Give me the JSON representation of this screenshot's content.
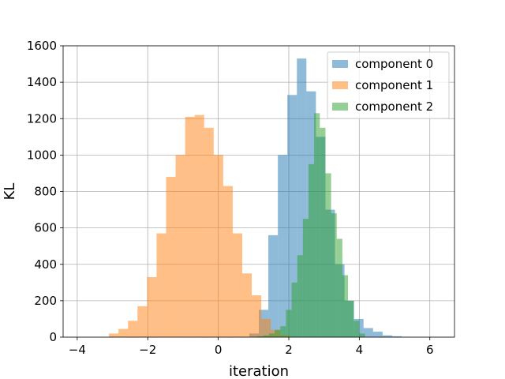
{
  "chart_data": {
    "type": "bar",
    "title": "",
    "xlabel": "iteration",
    "ylabel": "KL",
    "xlim": [
      -4.4,
      6.7
    ],
    "ylim": [
      0,
      1600
    ],
    "xticks": [
      -4,
      -2,
      0,
      2,
      4,
      6
    ],
    "yticks": [
      0,
      200,
      400,
      600,
      800,
      1000,
      1200,
      1400,
      1600
    ],
    "grid": true,
    "legend_position": "top-right",
    "alpha": 0.5,
    "series": [
      {
        "name": "component 0",
        "color": "#1f77b4",
        "edges": [
          0.88,
          1.15,
          1.42,
          1.69,
          1.96,
          2.23,
          2.5,
          2.77,
          3.04,
          3.31,
          3.58,
          3.85,
          4.12,
          4.39,
          4.66,
          4.93,
          5.2,
          5.47
        ],
        "counts": [
          20,
          150,
          560,
          1000,
          1330,
          1530,
          1350,
          1100,
          700,
          400,
          200,
          100,
          50,
          30,
          10,
          5,
          2
        ]
      },
      {
        "name": "component 1",
        "color": "#ff7f0e",
        "edges": [
          -3.1,
          -2.83,
          -2.56,
          -2.29,
          -2.02,
          -1.75,
          -1.48,
          -1.21,
          -0.94,
          -0.67,
          -0.4,
          -0.13,
          0.14,
          0.41,
          0.68,
          0.95,
          1.22,
          1.49,
          1.76,
          2.03
        ],
        "counts": [
          20,
          45,
          90,
          170,
          330,
          570,
          880,
          1000,
          1210,
          1220,
          1150,
          1000,
          830,
          570,
          350,
          230,
          100,
          40,
          12
        ]
      },
      {
        "name": "component 2",
        "color": "#2ca02c",
        "edges": [
          0.8,
          0.96,
          1.12,
          1.28,
          1.44,
          1.6,
          1.76,
          1.92,
          2.08,
          2.24,
          2.4,
          2.56,
          2.72,
          2.88,
          3.04,
          3.2,
          3.36,
          3.52,
          3.68,
          3.84,
          4.0,
          4.16
        ],
        "counts": [
          0,
          2,
          5,
          10,
          20,
          40,
          60,
          150,
          300,
          450,
          650,
          950,
          1230,
          1150,
          900,
          680,
          540,
          340,
          200,
          90,
          20
        ]
      }
    ]
  }
}
